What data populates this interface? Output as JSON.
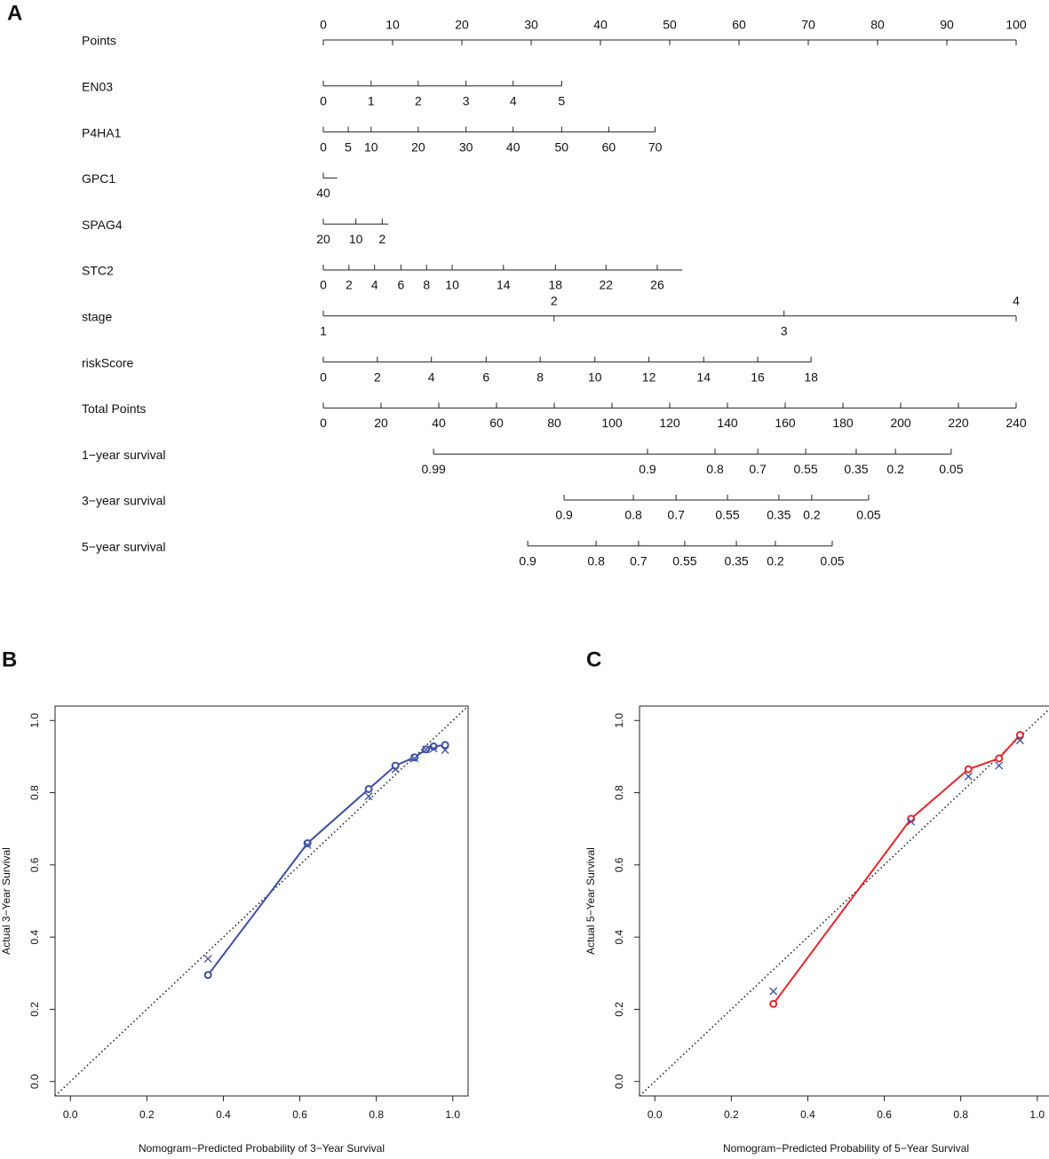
{
  "chart_data": [
    {
      "type": "nomogram",
      "panel": "A",
      "points_lim": [
        0,
        100
      ],
      "total_lim": [
        0,
        240
      ],
      "rows": [
        {
          "name": "Points",
          "axis": "points",
          "ticks": [
            0,
            10,
            20,
            30,
            40,
            50,
            60,
            70,
            80,
            90,
            100
          ],
          "side": "top"
        },
        {
          "name": "EN03",
          "axis": "points",
          "ticks": [
            {
              "value": 0,
              "label": "0"
            },
            {
              "value": 6.9,
              "label": "1"
            },
            {
              "value": 13.7,
              "label": "2"
            },
            {
              "value": 20.6,
              "label": "3"
            },
            {
              "value": 27.4,
              "label": "4"
            },
            {
              "value": 34.4,
              "label": "5"
            }
          ]
        },
        {
          "name": "P4HA1",
          "axis": "points",
          "ticks": [
            {
              "value": 0,
              "label": "0"
            },
            {
              "value": 3.6,
              "label": "5"
            },
            {
              "value": 6.9,
              "label": "10"
            },
            {
              "value": 13.7,
              "label": "20"
            },
            {
              "value": 20.6,
              "label": "30"
            },
            {
              "value": 27.4,
              "label": "40"
            },
            {
              "value": 34.4,
              "label": "50"
            },
            {
              "value": 41.2,
              "label": "60"
            },
            {
              "value": 47.9,
              "label": "70"
            }
          ]
        },
        {
          "name": "GPC1",
          "axis": "points",
          "lim": [
            0,
            2
          ],
          "ticks": [
            {
              "value": 0,
              "label": "40"
            }
          ]
        },
        {
          "name": "SPAG4",
          "axis": "points",
          "lim": [
            0,
            9.4
          ],
          "ticks": [
            {
              "value": 0,
              "label": "20"
            },
            {
              "value": 4.7,
              "label": "10"
            },
            {
              "value": 8.5,
              "label": "2"
            }
          ]
        },
        {
          "name": "STC2",
          "axis": "points",
          "lim": [
            0,
            51.8
          ],
          "ticks": [
            {
              "value": 0,
              "label": "0"
            },
            {
              "value": 3.7,
              "label": "2"
            },
            {
              "value": 7.4,
              "label": "4"
            },
            {
              "value": 11.2,
              "label": "6"
            },
            {
              "value": 14.9,
              "label": "8"
            },
            {
              "value": 18.6,
              "label": "10"
            },
            {
              "value": 26,
              "label": "14"
            },
            {
              "value": 33.5,
              "label": "18"
            },
            {
              "value": 40.8,
              "label": "22"
            },
            {
              "value": 48.2,
              "label": "26"
            }
          ]
        },
        {
          "name": "stage",
          "axis": "points",
          "ticks": [
            {
              "value": 0,
              "label": "1"
            },
            {
              "value": 33.3,
              "label": "2",
              "side": "top"
            },
            {
              "value": 66.5,
              "label": "3"
            },
            {
              "value": 100,
              "label": "4",
              "side": "top"
            }
          ]
        },
        {
          "name": "riskScore",
          "axis": "points",
          "ticks": [
            {
              "value": 0,
              "label": "0"
            },
            {
              "value": 7.8,
              "label": "2"
            },
            {
              "value": 15.6,
              "label": "4"
            },
            {
              "value": 23.5,
              "label": "6"
            },
            {
              "value": 31.3,
              "label": "8"
            },
            {
              "value": 39.2,
              "label": "10"
            },
            {
              "value": 47,
              "label": "12"
            },
            {
              "value": 54.9,
              "label": "14"
            },
            {
              "value": 62.7,
              "label": "16"
            },
            {
              "value": 70.4,
              "label": "18"
            }
          ]
        },
        {
          "name": "Total Points",
          "axis": "total",
          "ticks": [
            0,
            20,
            40,
            60,
            80,
            100,
            120,
            140,
            160,
            180,
            200,
            220,
            240
          ]
        },
        {
          "name": "1−year survival",
          "axis": "total",
          "ticks": [
            {
              "value": 38.2,
              "label": "0.99"
            },
            {
              "value": 112.3,
              "label": "0.9"
            },
            {
              "value": 135.7,
              "label": "0.8"
            },
            {
              "value": 150.5,
              "label": "0.7"
            },
            {
              "value": 167.1,
              "label": "0.55"
            },
            {
              "value": 184.6,
              "label": "0.35"
            },
            {
              "value": 198.2,
              "label": "0.2"
            },
            {
              "value": 217.5,
              "label": "0.05"
            }
          ]
        },
        {
          "name": "3−year survival",
          "axis": "total",
          "ticks": [
            {
              "value": 83.4,
              "label": "0.9"
            },
            {
              "value": 107.4,
              "label": "0.8"
            },
            {
              "value": 122.2,
              "label": "0.7"
            },
            {
              "value": 140,
              "label": "0.55"
            },
            {
              "value": 157.8,
              "label": "0.35"
            },
            {
              "value": 169.2,
              "label": "0.2"
            },
            {
              "value": 188.9,
              "label": "0.05"
            }
          ]
        },
        {
          "name": "5−year survival",
          "axis": "total",
          "ticks": [
            {
              "value": 70.8,
              "label": "0.9"
            },
            {
              "value": 94.5,
              "label": "0.8"
            },
            {
              "value": 109.2,
              "label": "0.7"
            },
            {
              "value": 125.2,
              "label": "0.55"
            },
            {
              "value": 143.1,
              "label": "0.35"
            },
            {
              "value": 156.6,
              "label": "0.2"
            },
            {
              "value": 176.3,
              "label": "0.05"
            }
          ]
        }
      ]
    },
    {
      "type": "calibration",
      "panel": "B",
      "xlabel": "Nomogram−Predicted Probability of 3−Year Survival",
      "ylabel": "Actual 3−Year Survival",
      "xlim": [
        -0.04,
        1.04
      ],
      "ylim": [
        -0.04,
        1.04
      ],
      "xticks": [
        {
          "value": 0,
          "label": "0.0"
        },
        0.2,
        0.4,
        0.6,
        0.8,
        {
          "value": 1,
          "label": "1.0"
        }
      ],
      "yticks": [
        {
          "value": 0,
          "label": "0.0"
        },
        0.2,
        0.4,
        0.6,
        0.8,
        {
          "value": 1,
          "label": "1.0"
        }
      ],
      "x": [
        0.36,
        0.62,
        0.78,
        0.85,
        0.9,
        0.93,
        0.95,
        0.98
      ],
      "series": [
        {
          "marker": "o",
          "color": "#3d4fa3",
          "line": true,
          "values": [
            0.295,
            0.66,
            0.81,
            0.875,
            0.898,
            0.92,
            0.928,
            0.932
          ]
        },
        {
          "marker": "x",
          "color": "#3d4fa3",
          "values": [
            0.34,
            0.655,
            0.79,
            0.865,
            0.895,
            0.92,
            0.922,
            0.918
          ]
        }
      ]
    },
    {
      "type": "calibration",
      "panel": "C",
      "xlabel": "Nomogram−Predicted Probability of 5−Year Survival",
      "ylabel": "Actual 5−Year Survival",
      "xlim": [
        -0.04,
        1.04
      ],
      "ylim": [
        -0.04,
        1.04
      ],
      "xticks": [
        {
          "value": 0,
          "label": "0.0"
        },
        0.2,
        0.4,
        0.6,
        0.8,
        {
          "value": 1,
          "label": "1.0"
        }
      ],
      "yticks": [
        {
          "value": 0,
          "label": "0.0"
        },
        0.2,
        0.4,
        0.6,
        0.8,
        {
          "value": 1,
          "label": "1.0"
        }
      ],
      "x": [
        0.31,
        0.67,
        0.82,
        0.9,
        0.955
      ],
      "series": [
        {
          "marker": "o",
          "color": "#e8262a",
          "line": true,
          "values": [
            0.215,
            0.728,
            0.865,
            0.895,
            0.96
          ]
        },
        {
          "marker": "x",
          "color": "#3d4fa3",
          "values": [
            0.25,
            0.72,
            0.845,
            0.875,
            0.945
          ]
        }
      ]
    }
  ]
}
